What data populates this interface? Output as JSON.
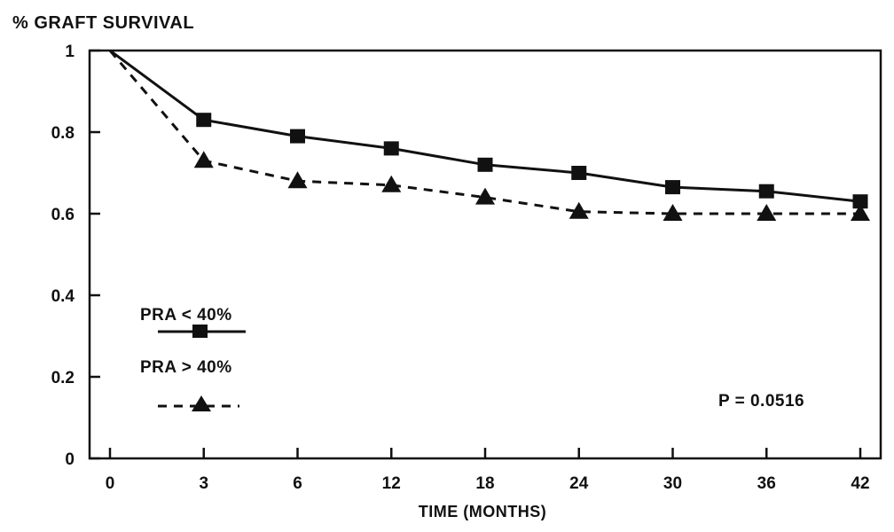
{
  "chart_data": {
    "type": "line",
    "title": "% GRAFT SURVIVAL",
    "xlabel": "TIME (MONTHS)",
    "ylabel": "",
    "x": [
      0,
      3,
      6,
      12,
      18,
      24,
      30,
      36,
      42
    ],
    "x_tick_labels": [
      "0",
      "3",
      "6",
      "12",
      "18",
      "24",
      "30",
      "36",
      "42"
    ],
    "y_ticks": [
      0,
      0.2,
      0.4,
      0.6,
      0.8,
      1
    ],
    "y_tick_labels": [
      "0",
      "0.2",
      "0.4",
      "0.6",
      "0.8",
      "1"
    ],
    "ylim": [
      0,
      1
    ],
    "grid": false,
    "legend_position": "center-left",
    "series": [
      {
        "name": "PRA < 40%",
        "marker": "square",
        "line_style": "solid",
        "values": [
          1.0,
          0.83,
          0.79,
          0.76,
          0.72,
          0.7,
          0.665,
          0.655,
          0.63
        ]
      },
      {
        "name": "PRA > 40%",
        "marker": "triangle",
        "line_style": "dashed",
        "values": [
          1.0,
          0.73,
          0.68,
          0.67,
          0.64,
          0.605,
          0.6,
          0.6,
          0.6
        ]
      }
    ],
    "annotation": "P = 0.0516",
    "colors": {
      "ink": "#111111",
      "background": "#ffffff"
    }
  }
}
